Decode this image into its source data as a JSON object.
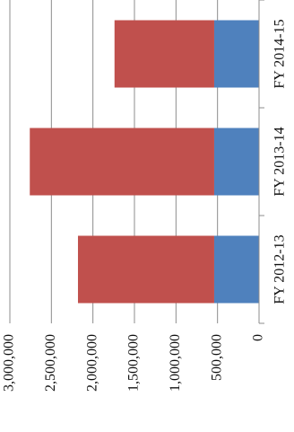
{
  "chart_data": {
    "type": "bar",
    "stacked": true,
    "orientation": "rotated",
    "categories": [
      "FY 2012-13",
      "FY 2013-14",
      "FY 2014-15"
    ],
    "series": [
      {
        "values": [
          540000,
          540000,
          540000
        ],
        "color": "#4f81bd"
      },
      {
        "values": [
          1640000,
          2220000,
          1200000
        ],
        "color": "#c0504d"
      }
    ],
    "value_axis": {
      "min": 0,
      "max": 3000000,
      "ticks": [
        0,
        500000,
        1000000,
        1500000,
        2000000,
        2500000,
        3000000
      ],
      "tick_labels": [
        "0",
        "500,000",
        "1,000,000",
        "1,500,000",
        "2,000,000",
        "2,500,000",
        "3,000,000"
      ]
    },
    "grid": true,
    "legend": "none"
  }
}
